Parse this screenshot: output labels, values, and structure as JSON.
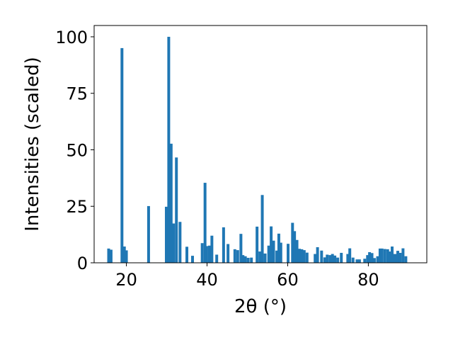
{
  "chart_data": {
    "type": "bar",
    "xlabel": "2θ (°)",
    "ylabel": "Intensities (scaled)",
    "xlim": [
      12,
      94.5
    ],
    "ylim": [
      0,
      105
    ],
    "xticks": [
      20,
      40,
      60,
      80
    ],
    "yticks": [
      0,
      25,
      50,
      75,
      100
    ],
    "x_tick_labels": [
      "20",
      "40",
      "60",
      "80"
    ],
    "y_tick_labels": [
      "0",
      "25",
      "50",
      "75",
      "100"
    ],
    "bar_width": 0.7,
    "color": "#1f77b4",
    "grid": false,
    "legend": "none",
    "series": [
      {
        "x": [
          15.6,
          16.2,
          18.9,
          19.5,
          20.0,
          25.5,
          29.9,
          30.5,
          31.1,
          31.7,
          32.4,
          33.3,
          35.0,
          36.4,
          38.8,
          39.5,
          39.9,
          40.6,
          41.2,
          42.4,
          44.1,
          45.2,
          46.9,
          47.6,
          48.4,
          48.9,
          49.5,
          50.2,
          51.0,
          52.4,
          53.1,
          53.7,
          54.4,
          55.3,
          55.9,
          56.5,
          57.3,
          57.8,
          58.3,
          60.1,
          61.2,
          61.7,
          62.3,
          62.9,
          63.5,
          64.1,
          64.8,
          66.8,
          67.4,
          68.4,
          69.2,
          69.8,
          70.5,
          71.1,
          71.7,
          72.4,
          73.3,
          74.9,
          75.4,
          76.2,
          77.2,
          77.8,
          79.1,
          79.8,
          80.3,
          80.9,
          81.5,
          82.3,
          82.9,
          83.4,
          84.1,
          84.8,
          85.3,
          85.9,
          86.6,
          87.3,
          87.9,
          88.6,
          89.3
        ],
        "values": [
          6.3,
          5.8,
          95.0,
          7.2,
          5.5,
          25.1,
          24.8,
          100.0,
          52.7,
          17.4,
          46.6,
          18.1,
          7.1,
          3.1,
          8.7,
          35.4,
          7.4,
          7.6,
          12.0,
          3.6,
          15.7,
          8.3,
          6.0,
          5.6,
          12.8,
          3.4,
          2.9,
          2.2,
          2.3,
          16.0,
          5.0,
          30.0,
          4.1,
          7.6,
          16.1,
          9.8,
          5.4,
          12.9,
          8.9,
          8.4,
          17.7,
          14.0,
          10.1,
          6.2,
          6.0,
          5.6,
          4.5,
          3.9,
          6.9,
          5.4,
          2.4,
          3.6,
          3.4,
          3.9,
          3.2,
          2.3,
          4.4,
          3.9,
          6.4,
          2.3,
          1.5,
          1.5,
          1.8,
          3.4,
          4.7,
          4.3,
          2.1,
          2.9,
          6.3,
          6.3,
          6.1,
          6.0,
          5.0,
          7.2,
          3.9,
          5.3,
          4.4,
          6.4,
          2.9
        ]
      }
    ]
  }
}
